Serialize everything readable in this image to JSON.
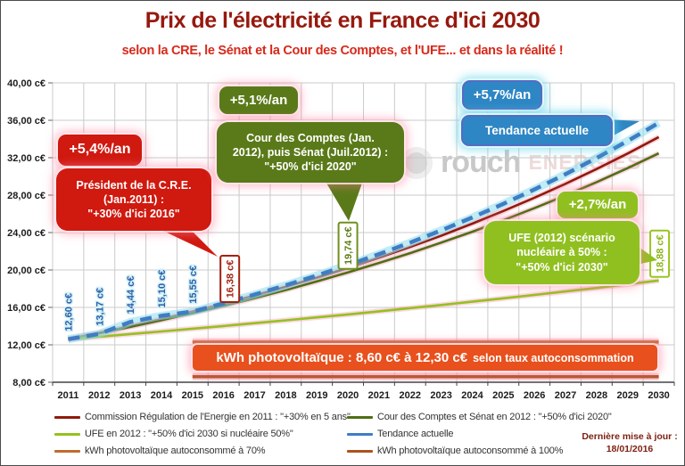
{
  "title": "Prix de l'électricité en France d'ici 2030",
  "subtitle": "selon la CRE, le Sénat et la Cour des Comptes, et l'UFE... et dans la réalité !",
  "watermark": {
    "brand": "rouch",
    "suffix": "ENERGIES"
  },
  "colors": {
    "title_red": "#96190e",
    "subtitle_red": "#d8291b",
    "red": "#d0190f",
    "dark_green": "#5a7a19",
    "blue": "#2e86c4",
    "light_green": "#90c020",
    "banner_orange": "#e8501d",
    "update_red": "#7c1f10"
  },
  "callouts": {
    "cre_rate": {
      "label": "+5,4%/an"
    },
    "cre_main": {
      "lines": [
        "Président de la C.R.E.",
        "(Jan.2011) :",
        "\"+30% d'ici 2016\""
      ]
    },
    "cour_rate": {
      "label": "+5,1%/an"
    },
    "cour_main": {
      "lines": [
        "Cour des Comptes (Jan.",
        "2012), puis Sénat (Juil.2012) :",
        "\"+50% d'ici 2020\""
      ]
    },
    "tendance_rate": {
      "label": "+5,7%/an"
    },
    "tendance_main": {
      "label": "Tendance actuelle"
    },
    "ufe_rate": {
      "label": "+2,7%/an"
    },
    "ufe_main": {
      "lines": [
        "UFE (2012) scénario",
        "nucléaire à 50% :",
        "\"+50% d'ici 2030\""
      ]
    }
  },
  "banner": {
    "text_main": "kWh photovoltaïque : 8,60 c€ à 12,30 c€",
    "text_suffix": "selon taux autoconsommation"
  },
  "legend": {
    "items": [
      {
        "label": "Commission Régulation de l'Energie en 2011 : \"+30% en 5 ans\"",
        "color": "#8f1b0b"
      },
      {
        "label": "Cour des Comptes et Sénat en 2012 : \"+50% d'ici 2020\"",
        "color": "#4e6f15"
      },
      {
        "label": "UFE en 2012 : \"+50% d'ici 2030 si nucléaire 50%\"",
        "color": "#94c11f"
      },
      {
        "label": "Tendance actuelle",
        "color": "#3f7dc4"
      },
      {
        "label": "kWh photovoltaïque autoconsommé à 70%",
        "color": "#c06c2e"
      },
      {
        "label": "kWh photovoltaïque autoconsommé à 100%",
        "color": "#a8541e"
      }
    ]
  },
  "update_note": {
    "lines": [
      "Dernière mise à jour :",
      "18/01/2016"
    ]
  },
  "chart_data": {
    "type": "line",
    "x": [
      2011,
      2012,
      2013,
      2014,
      2015,
      2016,
      2017,
      2018,
      2019,
      2020,
      2021,
      2022,
      2023,
      2024,
      2025,
      2026,
      2027,
      2028,
      2029,
      2030
    ],
    "ylim": [
      8,
      40
    ],
    "ytick_step": 4,
    "ytick_suffix": " c€",
    "grid": true,
    "series": [
      {
        "key": "cre",
        "name": "Commission Régulation de l'Energie en 2011 : \"+30% en 5 ans\"",
        "color": "#8f1b0b",
        "style": "solid",
        "growth_per_year": "+5,4%/an",
        "values": [
          12.6,
          13.28,
          14.0,
          14.75,
          15.55,
          16.38,
          17.27,
          18.2,
          19.18,
          20.22,
          21.31,
          22.46,
          23.67,
          24.95,
          26.3,
          27.72,
          29.21,
          30.79,
          32.45,
          34.21
        ]
      },
      {
        "key": "cour",
        "name": "Cour des Comptes et Sénat en 2012 : \"+50% d'ici 2020\"",
        "color": "#4e6f15",
        "style": "solid",
        "growth_per_year": "+5,1%/an",
        "values": [
          12.6,
          13.24,
          13.92,
          14.63,
          15.38,
          16.16,
          16.99,
          17.86,
          18.77,
          19.74,
          20.75,
          21.8,
          22.92,
          24.09,
          25.31,
          26.61,
          27.96,
          29.39,
          30.89,
          32.47
        ]
      },
      {
        "key": "ufe",
        "name": "UFE en 2012 : \"+50% d'ici 2030 si nucléaire 50%\"",
        "color": "#94c11f",
        "style": "solid",
        "growth_per_year": "+2,7%/an",
        "values": [
          12.6,
          12.87,
          13.15,
          13.43,
          13.72,
          14.01,
          14.31,
          14.62,
          14.93,
          15.25,
          15.58,
          15.92,
          16.26,
          16.61,
          16.97,
          17.33,
          17.7,
          18.08,
          18.48,
          18.88
        ]
      },
      {
        "key": "tendance",
        "name": "Tendance actuelle",
        "color": "#3f7dc4",
        "style": "dashed",
        "growth_per_year": "+5,7%/an",
        "values": [
          12.6,
          13.17,
          14.44,
          15.1,
          15.55,
          16.44,
          17.37,
          18.36,
          19.41,
          20.52,
          21.69,
          22.92,
          24.23,
          25.61,
          27.07,
          28.61,
          30.24,
          31.97,
          33.79,
          35.72
        ]
      },
      {
        "key": "pv70",
        "name": "kWh photovoltaïque autoconsommé à 70%",
        "color": "#c06c2e",
        "style": "flat",
        "value": 12.3,
        "from": 2015,
        "to": 2030
      },
      {
        "key": "pv100",
        "name": "kWh photovoltaïque autoconsommé à 100%",
        "color": "#a8541e",
        "style": "flat",
        "value": 8.6,
        "from": 2015,
        "to": 2030
      }
    ],
    "point_labels": [
      {
        "year": 2011,
        "value": 12.6,
        "text": "12,60 c€",
        "style": "blue"
      },
      {
        "year": 2012,
        "value": 13.17,
        "text": "13,17 c€",
        "style": "blue"
      },
      {
        "year": 2013,
        "value": 14.44,
        "text": "14,44 c€",
        "style": "blue"
      },
      {
        "year": 2014,
        "value": 15.1,
        "text": "15,10 c€",
        "style": "blue"
      },
      {
        "year": 2015,
        "value": 15.55,
        "text": "15,55 c€",
        "style": "blue"
      },
      {
        "year": 2016,
        "value": 16.38,
        "text": "16,38 c€",
        "style": "box-red",
        "dx": 7,
        "gap": 2
      },
      {
        "year": 2020,
        "value": 19.74,
        "text": "19,74 c€",
        "style": "box-olive",
        "dx": 0,
        "gap": 4
      },
      {
        "year": 2030,
        "value": 18.88,
        "text": "18,88 c€",
        "style": "box-lightgreen",
        "dx": 1,
        "gap": 4
      }
    ]
  }
}
